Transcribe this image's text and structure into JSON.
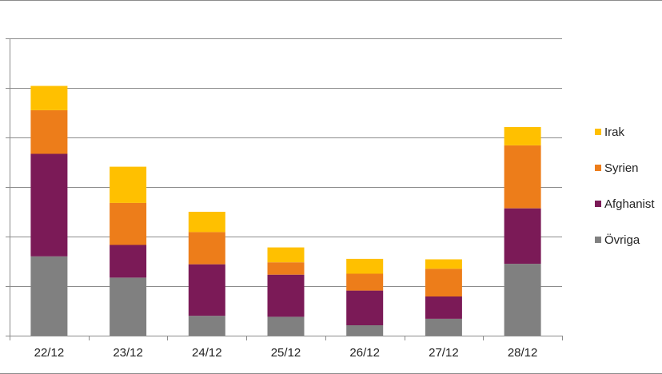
{
  "chart_data": {
    "type": "bar",
    "stacked": true,
    "title": "",
    "xlabel": "",
    "ylabel": "",
    "categories": [
      "22/12",
      "23/12",
      "24/12",
      "25/12",
      "26/12",
      "27/12",
      "28/12"
    ],
    "ylim": [
      0,
      6
    ],
    "grid": true,
    "legend_position": "right",
    "series": [
      {
        "name": "Övriga",
        "color": "#808080",
        "values": [
          1.6,
          1.17,
          0.4,
          0.38,
          0.21,
          0.34,
          1.45
        ]
      },
      {
        "name": "Afghanist",
        "color": "#7b1a57",
        "values": [
          2.07,
          0.66,
          1.04,
          0.85,
          0.7,
          0.45,
          1.12
        ]
      },
      {
        "name": "Syrien",
        "color": "#ed7d1a",
        "values": [
          0.88,
          0.85,
          0.65,
          0.25,
          0.34,
          0.56,
          1.27
        ]
      },
      {
        "name": "Irak",
        "color": "#ffc000",
        "values": [
          0.49,
          0.73,
          0.41,
          0.3,
          0.3,
          0.19,
          0.37
        ]
      }
    ]
  }
}
